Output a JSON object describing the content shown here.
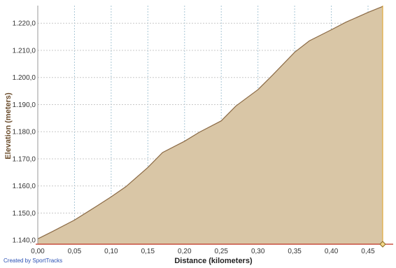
{
  "chart_data": {
    "type": "area",
    "title": "",
    "xlabel": "Distance (kilometers)",
    "ylabel": "Elevation (meters)",
    "xlim": [
      0,
      0.47
    ],
    "ylim": [
      1138.5,
      1226.5
    ],
    "x_ticks": [
      0,
      0.05,
      0.1,
      0.15,
      0.2,
      0.25,
      0.3,
      0.35,
      0.4,
      0.45
    ],
    "x_tick_labels": [
      "0,00",
      "0,05",
      "0,10",
      "0,15",
      "0,20",
      "0,25",
      "0,30",
      "0,35",
      "0,40",
      "0,45"
    ],
    "y_ticks": [
      1140,
      1150,
      1160,
      1170,
      1180,
      1190,
      1200,
      1210,
      1220
    ],
    "y_tick_labels": [
      "1.140,0",
      "1.150,0",
      "1.160,0",
      "1.170,0",
      "1.180,0",
      "1.190,0",
      "1.200,0",
      "1.210,0",
      "1.220,0"
    ],
    "grid": true,
    "series": [
      {
        "x": [
          0,
          0.02,
          0.05,
          0.08,
          0.1,
          0.12,
          0.15,
          0.17,
          0.2,
          0.22,
          0.25,
          0.27,
          0.3,
          0.32,
          0.35,
          0.37,
          0.4,
          0.42,
          0.45,
          0.47
        ],
        "y": [
          1140.5,
          1143.2,
          1147.4,
          1152.5,
          1156.0,
          1159.7,
          1166.8,
          1172.3,
          1176.5,
          1179.8,
          1184.0,
          1189.5,
          1195.5,
          1200.9,
          1209.3,
          1213.5,
          1217.6,
          1220.4,
          1224.0,
          1226.2
        ]
      }
    ],
    "colors": {
      "fill": "#d9c6a6",
      "line": "#8b6a45",
      "grid_vertical": "#a9c7d6",
      "grid_horizontal": "#c8c8c8",
      "axis_title": "#6e5030",
      "marker_line": "#e0a020",
      "baseline": "#c03020"
    }
  },
  "footer": {
    "credit": "Created by SportTracks"
  }
}
